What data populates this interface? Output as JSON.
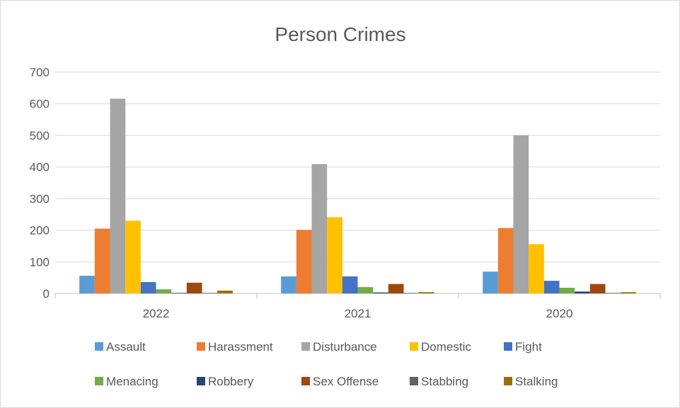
{
  "chart_data": {
    "type": "bar",
    "title": "Person Crimes",
    "xlabel": "",
    "ylabel": "",
    "categories": [
      "2022",
      "2021",
      "2020"
    ],
    "ylim": [
      0,
      700
    ],
    "yticks": [
      0,
      100,
      200,
      300,
      400,
      500,
      600,
      700
    ],
    "grid": true,
    "legend": "bottom",
    "series": [
      {
        "name": "Assault",
        "color": "#5B9BD5",
        "values": [
          56,
          54,
          69
        ]
      },
      {
        "name": "Harassment",
        "color": "#ED7D31",
        "values": [
          205,
          201,
          207
        ]
      },
      {
        "name": "Disturbance",
        "color": "#A5A5A5",
        "values": [
          616,
          409,
          500
        ]
      },
      {
        "name": "Domestic",
        "color": "#FFC000",
        "values": [
          230,
          241,
          156
        ]
      },
      {
        "name": "Fight",
        "color": "#4472C4",
        "values": [
          36,
          54,
          40
        ]
      },
      {
        "name": "Menacing",
        "color": "#70AD47",
        "values": [
          13,
          20,
          18
        ]
      },
      {
        "name": "Robbery",
        "color": "#264478",
        "values": [
          1,
          3,
          6
        ]
      },
      {
        "name": "Sex Offense",
        "color": "#9E480E",
        "values": [
          34,
          30,
          30
        ]
      },
      {
        "name": "Stabbing",
        "color": "#636363",
        "values": [
          1,
          1,
          1
        ]
      },
      {
        "name": "Stalking",
        "color": "#997300",
        "values": [
          9,
          4,
          4
        ]
      }
    ]
  }
}
